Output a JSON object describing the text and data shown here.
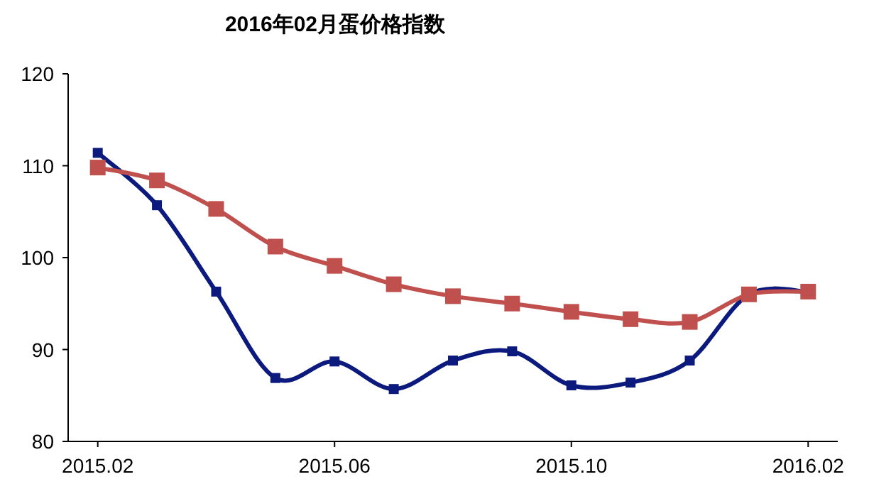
{
  "chart_data": {
    "type": "line",
    "title": "2016年02月蛋价格指数",
    "categories": [
      "2015.02",
      null,
      null,
      null,
      "2015.06",
      null,
      null,
      null,
      "2015.10",
      null,
      null,
      null,
      "2016.02"
    ],
    "series": [
      {
        "color": "#0b1a7c",
        "marker": "square",
        "values": [
          111.4,
          105.7,
          96.3,
          86.9,
          88.7,
          85.7,
          88.8,
          89.8,
          86.1,
          86.4,
          88.8,
          96.0,
          96.3
        ]
      },
      {
        "color": "#c0504d",
        "marker": "square",
        "values": [
          109.8,
          108.4,
          105.3,
          101.2,
          99.1,
          97.1,
          95.8,
          95.0,
          94.1,
          93.3,
          93.0,
          96.0,
          96.3
        ]
      }
    ],
    "ylim": [
      80,
      120
    ],
    "yticks": [
      80,
      90,
      100,
      110,
      120
    ],
    "grid": false,
    "line_style": "solid"
  }
}
